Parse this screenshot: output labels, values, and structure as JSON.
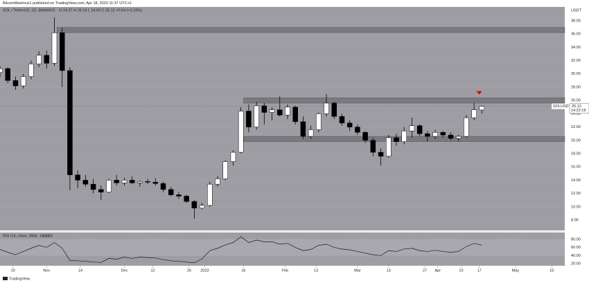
{
  "header": {
    "publisher": "BitcoinMaximus1 published on TradingView.com, Apr 18, 2023 11:37 UTC+2",
    "symbol": "SOL / TetherUS, 1D, BINANCE",
    "ohlc": "O 24.57 H 25.19 L 24.00 C 25.12 +0.54 (+2.20%)",
    "footer": "TradingView"
  },
  "chart_data": [
    {
      "type": "candlestick",
      "unit": "USDT",
      "up_color": "#ffffff",
      "down_color": "#000000",
      "x": [
        "2022-10-14",
        "2022-10-17",
        "2022-10-20",
        "2022-10-23",
        "2022-10-26",
        "2022-10-29",
        "2022-11-01",
        "2022-11-04",
        "2022-11-07",
        "2022-11-10",
        "2022-11-13",
        "2022-11-16",
        "2022-11-19",
        "2022-11-22",
        "2022-11-25",
        "2022-11-28",
        "2022-12-01",
        "2022-12-04",
        "2022-12-07",
        "2022-12-10",
        "2022-12-13",
        "2022-12-16",
        "2022-12-19",
        "2022-12-22",
        "2022-12-25",
        "2022-12-28",
        "2022-12-31",
        "2023-01-03",
        "2023-01-06",
        "2023-01-09",
        "2023-01-12",
        "2023-01-15",
        "2023-01-18",
        "2023-01-21",
        "2023-01-24",
        "2023-01-27",
        "2023-01-30",
        "2023-02-02",
        "2023-02-05",
        "2023-02-08",
        "2023-02-11",
        "2023-02-14",
        "2023-02-17",
        "2023-02-20",
        "2023-02-23",
        "2023-02-26",
        "2023-03-01",
        "2023-03-04",
        "2023-03-07",
        "2023-03-10",
        "2023-03-13",
        "2023-03-16",
        "2023-03-19",
        "2023-03-22",
        "2023-03-25",
        "2023-03-28",
        "2023-03-31",
        "2023-04-03",
        "2023-04-06",
        "2023-04-09",
        "2023-04-12",
        "2023-04-15",
        "2023-04-18"
      ],
      "open": [
        30.2,
        30.8,
        29.0,
        28.2,
        29.6,
        31.5,
        32.8,
        31.6,
        36.2,
        30.5,
        14.8,
        14.0,
        13.4,
        12.6,
        12.2,
        14.0,
        13.6,
        14.0,
        13.6,
        13.8,
        13.7,
        13.5,
        12.6,
        11.8,
        11.6,
        10.8,
        9.8,
        10.2,
        13.4,
        14.2,
        16.8,
        18.2,
        24.4,
        22.0,
        25.2,
        24.2,
        24.6,
        23.8,
        25.0,
        22.8,
        20.6,
        21.6,
        24.0,
        25.6,
        23.6,
        22.6,
        22.0,
        21.2,
        20.0,
        18.2,
        17.6,
        20.4,
        19.8,
        21.4,
        22.2,
        21.0,
        20.6,
        21.2,
        20.8,
        20.3,
        20.6,
        23.4,
        24.57
      ],
      "high": [
        31.2,
        31.0,
        29.6,
        30.0,
        32.0,
        33.4,
        33.5,
        38.5,
        37.0,
        31.0,
        15.5,
        14.8,
        14.2,
        13.2,
        14.2,
        14.8,
        14.4,
        14.6,
        14.0,
        14.2,
        14.3,
        13.8,
        13.0,
        12.2,
        11.8,
        11.0,
        10.6,
        13.8,
        14.6,
        17.0,
        18.5,
        25.0,
        25.4,
        25.8,
        25.6,
        25.0,
        26.6,
        25.4,
        25.2,
        23.6,
        22.2,
        24.2,
        27.0,
        25.8,
        24.0,
        23.0,
        22.4,
        21.4,
        20.4,
        18.8,
        20.8,
        21.0,
        22.0,
        23.4,
        22.4,
        21.4,
        21.6,
        21.4,
        21.2,
        20.8,
        23.8,
        25.6,
        25.19
      ],
      "low": [
        29.5,
        28.6,
        27.6,
        27.8,
        29.2,
        31.0,
        30.8,
        31.2,
        28.0,
        12.5,
        12.8,
        13.0,
        12.0,
        11.0,
        12.0,
        13.2,
        13.2,
        13.4,
        13.0,
        13.4,
        13.2,
        12.2,
        11.6,
        11.2,
        10.6,
        8.2,
        9.6,
        10.0,
        13.0,
        14.0,
        16.2,
        18.0,
        21.2,
        21.6,
        22.4,
        23.0,
        23.6,
        23.2,
        22.4,
        20.2,
        20.2,
        21.2,
        23.6,
        23.2,
        22.2,
        21.4,
        20.8,
        19.6,
        17.6,
        16.2,
        17.4,
        19.2,
        19.4,
        20.4,
        20.6,
        19.8,
        20.2,
        20.4,
        20.0,
        19.8,
        20.4,
        23.0,
        24.0
      ],
      "close": [
        30.8,
        29.0,
        28.2,
        29.6,
        31.5,
        32.8,
        31.6,
        36.2,
        30.5,
        14.8,
        14.0,
        13.4,
        12.6,
        12.2,
        14.0,
        13.6,
        14.0,
        13.6,
        13.8,
        13.7,
        13.5,
        12.6,
        11.8,
        11.6,
        10.8,
        9.8,
        10.2,
        13.4,
        14.2,
        16.8,
        18.2,
        24.4,
        22.0,
        25.2,
        24.2,
        24.6,
        23.8,
        25.0,
        22.8,
        20.6,
        21.6,
        24.0,
        25.6,
        23.6,
        22.6,
        22.0,
        21.2,
        20.0,
        18.2,
        17.6,
        20.4,
        19.8,
        21.4,
        22.2,
        21.0,
        20.6,
        21.2,
        20.8,
        20.3,
        20.6,
        23.4,
        24.6,
        25.12
      ],
      "xlim": [
        "2022-10-14",
        "2023-05-20"
      ],
      "xticks": [
        {
          "value": "2022-10-19",
          "label": "19"
        },
        {
          "value": "2022-11-01",
          "label": "Nov"
        },
        {
          "value": "2022-11-14",
          "label": "14"
        },
        {
          "value": "2022-12-01",
          "label": "Dec"
        },
        {
          "value": "2022-12-12",
          "label": "12"
        },
        {
          "value": "2022-12-26",
          "label": "26"
        },
        {
          "value": "2023-01-01",
          "label": "2023"
        },
        {
          "value": "2023-01-16",
          "label": "16"
        },
        {
          "value": "2023-02-01",
          "label": "Feb"
        },
        {
          "value": "2023-02-13",
          "label": "13"
        },
        {
          "value": "2023-03-01",
          "label": "Mar"
        },
        {
          "value": "2023-03-13",
          "label": "13"
        },
        {
          "value": "2023-03-27",
          "label": "27"
        },
        {
          "value": "2023-04-01",
          "label": "Apr"
        },
        {
          "value": "2023-04-10",
          "label": "10"
        },
        {
          "value": "2023-04-17",
          "label": "17"
        },
        {
          "value": "2023-05-01",
          "label": "May"
        },
        {
          "value": "2023-05-15",
          "label": "15"
        }
      ],
      "ylim": [
        6.44,
        40.08
      ],
      "yticks": [
        {
          "value": 38,
          "label": "38.00"
        },
        {
          "value": 36,
          "label": "36.00"
        },
        {
          "value": 34,
          "label": "34.00"
        },
        {
          "value": 32,
          "label": "32.00"
        },
        {
          "value": 30,
          "label": "30.00"
        },
        {
          "value": 28,
          "label": "28.00"
        },
        {
          "value": 26,
          "label": "26.00"
        },
        {
          "value": 24,
          "label": "24.00"
        },
        {
          "value": 22,
          "label": "22.00"
        },
        {
          "value": 20,
          "label": "20.00"
        },
        {
          "value": 18,
          "label": "18.00"
        },
        {
          "value": 16,
          "label": "16.00"
        },
        {
          "value": 14,
          "label": "14.00"
        },
        {
          "value": 12,
          "label": "12.00"
        },
        {
          "value": 10,
          "label": "10.00"
        },
        {
          "value": 8,
          "label": "8.00"
        }
      ],
      "zones": [
        {
          "start": "2022-11-05",
          "from": 36.2,
          "to": 37.0
        },
        {
          "start": "2023-01-16",
          "from": 25.6,
          "to": 26.4
        },
        {
          "start": "2023-01-16",
          "from": 19.8,
          "to": 20.6
        }
      ],
      "marker": {
        "x": "2023-04-17",
        "y": 27.0,
        "color": "#e00000"
      },
      "last_price": {
        "symbol": "SOLUSDT",
        "value": 25.12,
        "countdown": "14:22:19"
      }
    },
    {
      "type": "line",
      "title": "RSI (14, close, SMA, 14, 2)",
      "color": "#1a1a1a",
      "x": [
        "2022-10-14",
        "2022-10-17",
        "2022-10-20",
        "2022-10-23",
        "2022-10-26",
        "2022-10-29",
        "2022-11-01",
        "2022-11-04",
        "2022-11-07",
        "2022-11-10",
        "2022-11-13",
        "2022-11-16",
        "2022-11-19",
        "2022-11-22",
        "2022-11-25",
        "2022-11-28",
        "2022-12-01",
        "2022-12-04",
        "2022-12-07",
        "2022-12-10",
        "2022-12-13",
        "2022-12-16",
        "2022-12-19",
        "2022-12-22",
        "2022-12-25",
        "2022-12-28",
        "2022-12-31",
        "2023-01-03",
        "2023-01-06",
        "2023-01-09",
        "2023-01-12",
        "2023-01-15",
        "2023-01-18",
        "2023-01-21",
        "2023-01-24",
        "2023-01-27",
        "2023-01-30",
        "2023-02-02",
        "2023-02-05",
        "2023-02-08",
        "2023-02-11",
        "2023-02-14",
        "2023-02-17",
        "2023-02-20",
        "2023-02-23",
        "2023-02-26",
        "2023-03-01",
        "2023-03-04",
        "2023-03-07",
        "2023-03-10",
        "2023-03-13",
        "2023-03-16",
        "2023-03-19",
        "2023-03-22",
        "2023-03-25",
        "2023-03-28",
        "2023-03-31",
        "2023-04-03",
        "2023-04-06",
        "2023-04-09",
        "2023-04-12",
        "2023-04-15",
        "2023-04-18"
      ],
      "values": [
        55,
        48,
        42,
        50,
        58,
        65,
        60,
        72,
        58,
        28,
        27,
        26,
        24,
        23,
        33,
        31,
        36,
        33,
        36,
        35,
        34,
        30,
        27,
        26,
        24,
        22,
        32,
        52,
        58,
        66,
        72,
        86,
        72,
        78,
        74,
        74,
        68,
        70,
        60,
        52,
        55,
        65,
        68,
        60,
        56,
        54,
        50,
        46,
        42,
        40,
        52,
        50,
        56,
        58,
        52,
        50,
        53,
        50,
        48,
        50,
        62,
        70,
        65.56
      ],
      "last_value": 65.56,
      "xlim": [
        "2022-10-14",
        "2023-05-20"
      ],
      "ylim": [
        15,
        96.7
      ],
      "yticks": [
        {
          "value": 80,
          "label": "80.00"
        },
        {
          "value": 60,
          "label": "60.00"
        },
        {
          "value": 40,
          "label": "40.00"
        },
        {
          "value": 20,
          "label": "20.00"
        }
      ]
    }
  ]
}
